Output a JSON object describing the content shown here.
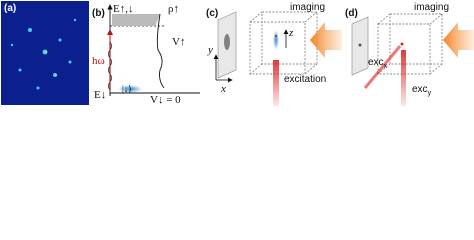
{
  "panels": [
    {
      "label": "(a)"
    },
    {
      "label": "(b)",
      "energy_label": "E↑,↓",
      "density_label": "ρ↑",
      "potential_label": "V↑",
      "photon_label": "hω",
      "ground_label": "E↓",
      "state_label": "|↓⟩",
      "ground_potential_label": "V↓ = 0"
    },
    {
      "label": "(c)",
      "imaging": "imaging",
      "excitation": "excitation",
      "axis_y": "y",
      "axis_x": "x",
      "axis_z": "z"
    },
    {
      "label": "(d)",
      "imaging": "imaging",
      "exc_x": {
        "base": "exc",
        "sub": "x"
      },
      "exc_y": {
        "base": "exc",
        "sub": "y"
      }
    }
  ]
}
